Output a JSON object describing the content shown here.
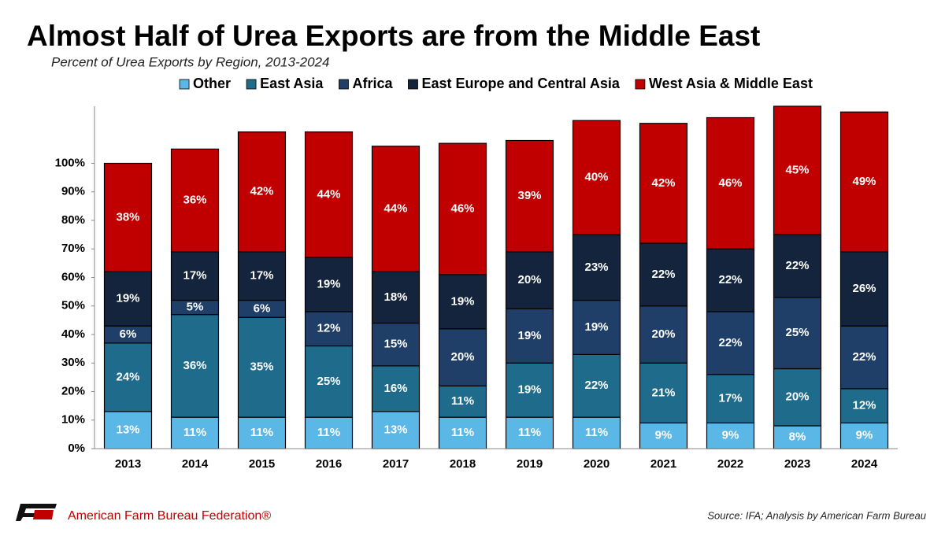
{
  "chart_data": {
    "type": "stacked_bar",
    "title": "Almost Half of Urea Exports are from the Middle East",
    "subtitle": "Percent of Urea Exports by Region, 2013-2024",
    "source": "Source: IFA; Analysis by American Farm Bureau",
    "brand": "American Farm Bureau Federation®",
    "categories": [
      "2013",
      "2014",
      "2015",
      "2016",
      "2017",
      "2018",
      "2019",
      "2020",
      "2021",
      "2022",
      "2023",
      "2024"
    ],
    "series": [
      {
        "name": "Other",
        "color": "#5bb8e6",
        "values": [
          13,
          11,
          11,
          11,
          13,
          11,
          11,
          11,
          9,
          9,
          8,
          9
        ],
        "value_labels": [
          "13%",
          "11%",
          "11%",
          "11%",
          "13%",
          "11%",
          "11%",
          "11%",
          "9%",
          "9%",
          "8%",
          "9%"
        ]
      },
      {
        "name": "East Asia",
        "color": "#1e6b8c",
        "values": [
          24,
          36,
          35,
          25,
          16,
          11,
          19,
          22,
          21,
          17,
          20,
          12
        ],
        "value_labels": [
          "24%",
          "36%",
          "35%",
          "25%",
          "16%",
          "11%",
          "19%",
          "22%",
          "21%",
          "17%",
          "20%",
          "12%"
        ]
      },
      {
        "name": "Africa",
        "color": "#1f3f68",
        "values": [
          6,
          5,
          6,
          12,
          15,
          20,
          19,
          19,
          20,
          22,
          25,
          22
        ],
        "value_labels": [
          "6%",
          "5%",
          "6%",
          "12%",
          "15%",
          "20%",
          "19%",
          "19%",
          "20%",
          "22%",
          "25%",
          "22%"
        ]
      },
      {
        "name": "East Europe and Central Asia",
        "color": "#14243c",
        "values": [
          19,
          17,
          17,
          19,
          18,
          19,
          20,
          23,
          22,
          22,
          22,
          26
        ],
        "value_labels": [
          "19%",
          "17%",
          "17%",
          "19%",
          "18%",
          "19%",
          "20%",
          "23%",
          "22%",
          "22%",
          "22%",
          "26%"
        ]
      },
      {
        "name": "West Asia & Middle East",
        "color": "#c00000",
        "values": [
          38,
          36,
          42,
          44,
          44,
          46,
          39,
          40,
          42,
          46,
          45,
          49
        ],
        "value_labels": [
          "38%",
          "36%",
          "42%",
          "44%",
          "44%",
          "46%",
          "39%",
          "40%",
          "42%",
          "46%",
          "45%",
          "49%"
        ]
      }
    ],
    "ylim": [
      0,
      120
    ],
    "yticks": [
      {
        "value": 0,
        "label": "0%"
      },
      {
        "value": 10,
        "label": "10%"
      },
      {
        "value": 20,
        "label": "20%"
      },
      {
        "value": 30,
        "label": "30%"
      },
      {
        "value": 40,
        "label": "40%"
      },
      {
        "value": 50,
        "label": "50%"
      },
      {
        "value": 60,
        "label": "60%"
      },
      {
        "value": 70,
        "label": "70%"
      },
      {
        "value": 80,
        "label": "80%"
      },
      {
        "value": 90,
        "label": "90%"
      },
      {
        "value": 100,
        "label": "100%"
      }
    ],
    "grid": false,
    "legend": "top"
  }
}
